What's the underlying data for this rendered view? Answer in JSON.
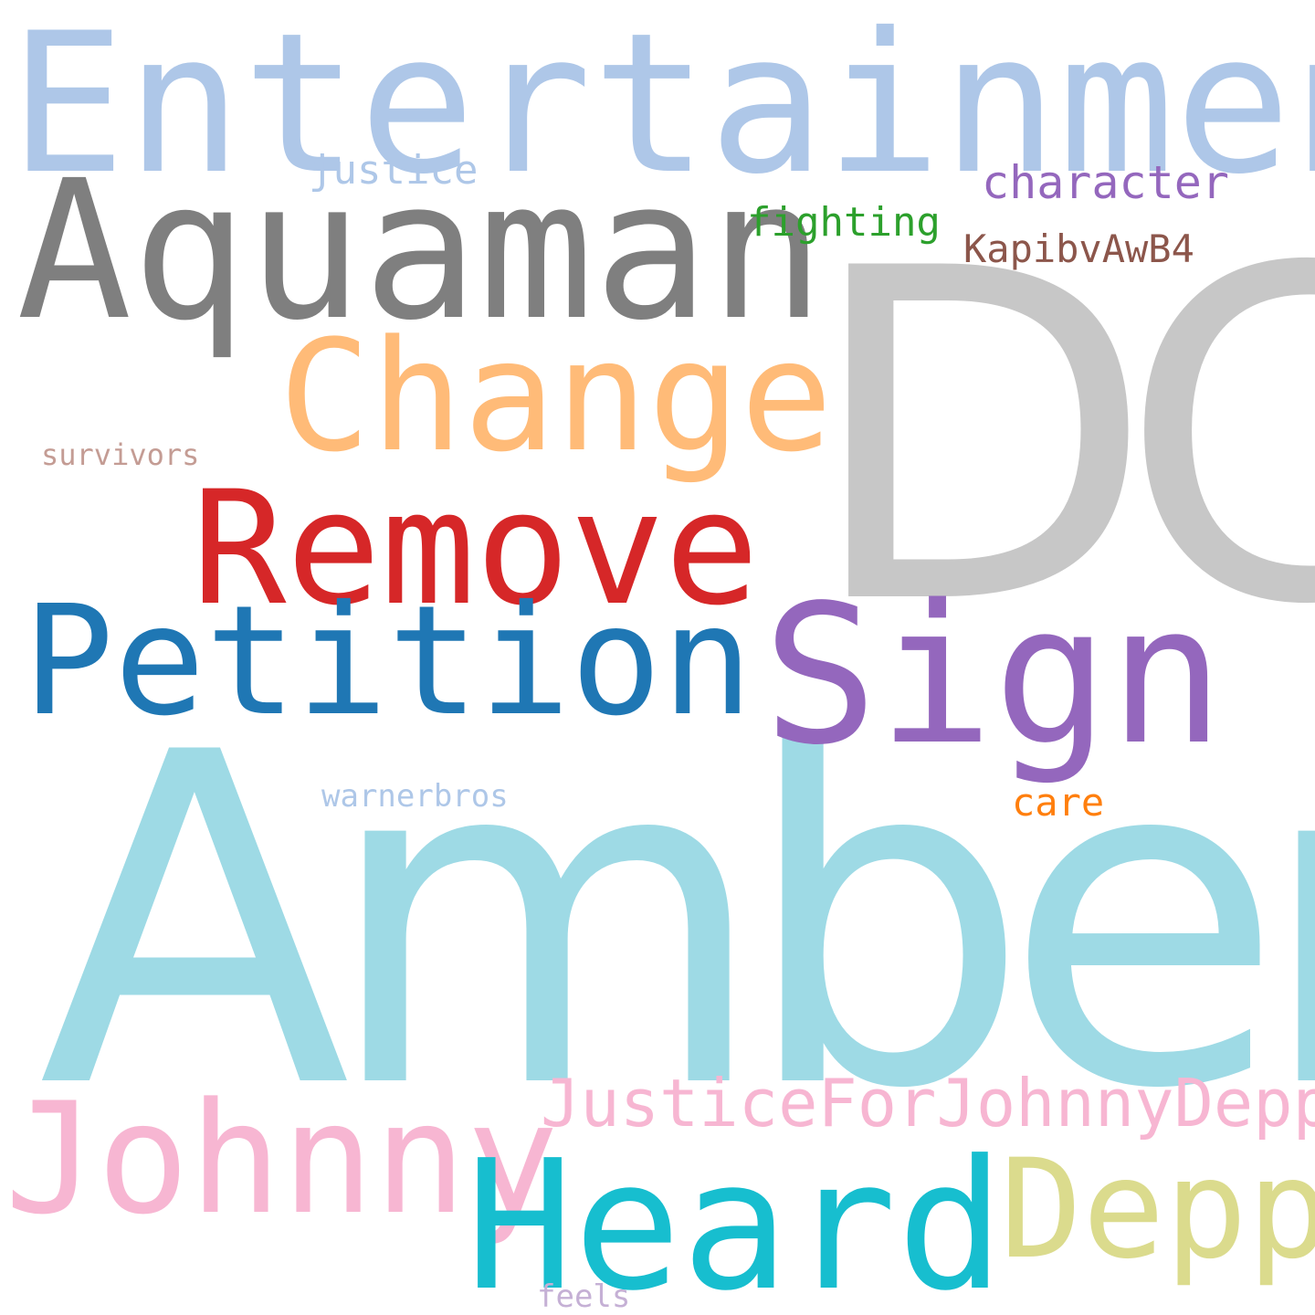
{
  "cloud": {
    "words": [
      {
        "id": "w-entertainment",
        "text": "Entertainment",
        "color": "#aec7e8"
      },
      {
        "id": "w-justice-small",
        "text": "justice",
        "color": "#aec7e8"
      },
      {
        "id": "w-character",
        "text": "character",
        "color": "#9467bd"
      },
      {
        "id": "w-aquaman",
        "text": "Aquaman",
        "color": "#7f7f7f"
      },
      {
        "id": "w-fighting",
        "text": "fighting",
        "color": "#2ca02c"
      },
      {
        "id": "w-kapib",
        "text": "KapibvAwB4",
        "color": "#8c564b"
      },
      {
        "id": "w-dc",
        "text": "DC",
        "color": "#c7c7c7"
      },
      {
        "id": "w-change",
        "text": "Change",
        "color": "#ffbb78"
      },
      {
        "id": "w-survivors",
        "text": "survivors",
        "color": "#c49c94"
      },
      {
        "id": "w-remove",
        "text": "Remove",
        "color": "#d62728"
      },
      {
        "id": "w-petition",
        "text": "Petition",
        "color": "#1f77b4"
      },
      {
        "id": "w-sign",
        "text": "Sign",
        "color": "#9467bd"
      },
      {
        "id": "w-warnerbros",
        "text": "warnerbros",
        "color": "#aec7e8"
      },
      {
        "id": "w-care",
        "text": "care",
        "color": "#ff7f0e"
      },
      {
        "id": "w-amber",
        "text": "Amber",
        "color": "#9edae5"
      },
      {
        "id": "w-justicefor",
        "text": "JusticeForJohnnyDepp",
        "color": "#f7b6d2"
      },
      {
        "id": "w-johnny",
        "text": "Johnny",
        "color": "#f7b6d2"
      },
      {
        "id": "w-depp",
        "text": "Depp",
        "color": "#dbdb8d"
      },
      {
        "id": "w-heard",
        "text": "Heard",
        "color": "#17becf"
      },
      {
        "id": "w-feels",
        "text": "feels",
        "color": "#c5b0d5"
      }
    ]
  }
}
